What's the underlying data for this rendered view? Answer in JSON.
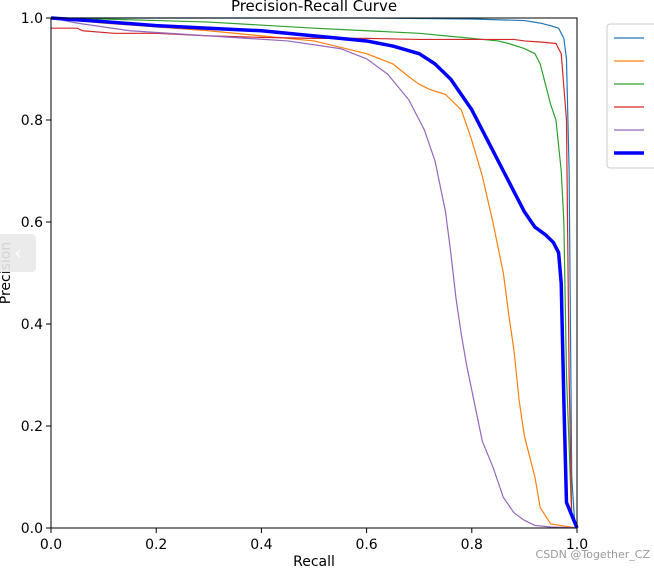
{
  "chart_data": {
    "type": "line",
    "title": "Precision-Recall Curve",
    "xlabel": "Recall",
    "ylabel": "Precision",
    "xlim": [
      0.0,
      1.0
    ],
    "ylim": [
      0.0,
      1.0
    ],
    "xticks": [
      "0.0",
      "0.2",
      "0.4",
      "0.6",
      "0.8",
      "1.0"
    ],
    "yticks": [
      "0.0",
      "0.2",
      "0.4",
      "0.6",
      "0.8",
      "1.0"
    ],
    "grid": false,
    "legend_position": "outside top-right",
    "series": [
      {
        "color": "#1f77b4",
        "linewidth": 1.2,
        "x": [
          0.0,
          0.05,
          0.2,
          0.4,
          0.6,
          0.8,
          0.9,
          0.93,
          0.95,
          0.965,
          0.975,
          0.98,
          0.985,
          0.99,
          0.995,
          1.0
        ],
        "y": [
          1.0,
          1.0,
          1.0,
          1.0,
          1.0,
          0.998,
          0.995,
          0.99,
          0.985,
          0.98,
          0.96,
          0.92,
          0.7,
          0.1,
          0.02,
          0.0
        ]
      },
      {
        "color": "#ff7f0e",
        "linewidth": 1.2,
        "x": [
          0.0,
          0.1,
          0.3,
          0.5,
          0.6,
          0.65,
          0.68,
          0.7,
          0.72,
          0.75,
          0.78,
          0.8,
          0.82,
          0.84,
          0.86,
          0.87,
          0.88,
          0.89,
          0.9,
          0.92,
          0.93,
          0.95,
          0.98,
          1.0
        ],
        "y": [
          1.0,
          0.99,
          0.975,
          0.955,
          0.93,
          0.91,
          0.885,
          0.87,
          0.86,
          0.85,
          0.82,
          0.76,
          0.69,
          0.6,
          0.5,
          0.42,
          0.35,
          0.25,
          0.18,
          0.1,
          0.04,
          0.008,
          0.003,
          0.0
        ]
      },
      {
        "color": "#2ca02c",
        "linewidth": 1.2,
        "x": [
          0.0,
          0.1,
          0.3,
          0.5,
          0.6,
          0.7,
          0.8,
          0.85,
          0.87,
          0.9,
          0.92,
          0.93,
          0.94,
          0.95,
          0.96,
          0.97,
          0.975,
          0.98,
          0.99,
          1.0
        ],
        "y": [
          1.0,
          0.998,
          0.992,
          0.98,
          0.975,
          0.97,
          0.96,
          0.955,
          0.95,
          0.94,
          0.93,
          0.91,
          0.87,
          0.83,
          0.8,
          0.7,
          0.6,
          0.3,
          0.02,
          0.0
        ]
      },
      {
        "color": "#d62728",
        "linewidth": 1.2,
        "x": [
          0.0,
          0.05,
          0.06,
          0.12,
          0.2,
          0.3,
          0.4,
          0.5,
          0.6,
          0.7,
          0.8,
          0.88,
          0.9,
          0.93,
          0.96,
          0.97,
          0.98,
          0.985,
          0.99,
          1.0
        ],
        "y": [
          0.98,
          0.98,
          0.975,
          0.97,
          0.97,
          0.965,
          0.962,
          0.96,
          0.96,
          0.958,
          0.958,
          0.958,
          0.955,
          0.953,
          0.95,
          0.93,
          0.8,
          0.3,
          0.02,
          0.0
        ]
      },
      {
        "color": "#9467bd",
        "linewidth": 1.2,
        "x": [
          0.0,
          0.05,
          0.15,
          0.3,
          0.45,
          0.55,
          0.6,
          0.64,
          0.68,
          0.71,
          0.73,
          0.75,
          0.76,
          0.77,
          0.78,
          0.79,
          0.8,
          0.81,
          0.82,
          0.84,
          0.86,
          0.88,
          0.9,
          0.92,
          0.95,
          1.0
        ],
        "y": [
          1.0,
          0.99,
          0.975,
          0.965,
          0.955,
          0.94,
          0.92,
          0.89,
          0.84,
          0.78,
          0.72,
          0.62,
          0.54,
          0.45,
          0.38,
          0.32,
          0.27,
          0.22,
          0.17,
          0.12,
          0.06,
          0.03,
          0.015,
          0.005,
          0.002,
          0.0
        ]
      },
      {
        "color": "#0000ff",
        "linewidth": 3.5,
        "x": [
          0.0,
          0.1,
          0.2,
          0.3,
          0.4,
          0.5,
          0.55,
          0.6,
          0.65,
          0.7,
          0.73,
          0.76,
          0.78,
          0.8,
          0.82,
          0.84,
          0.86,
          0.88,
          0.9,
          0.92,
          0.94,
          0.955,
          0.965,
          0.97,
          0.975,
          0.98,
          1.0
        ],
        "y": [
          1.0,
          0.993,
          0.985,
          0.98,
          0.975,
          0.965,
          0.96,
          0.955,
          0.945,
          0.93,
          0.91,
          0.88,
          0.85,
          0.82,
          0.78,
          0.74,
          0.7,
          0.66,
          0.62,
          0.59,
          0.575,
          0.56,
          0.54,
          0.48,
          0.25,
          0.05,
          0.0
        ]
      }
    ]
  },
  "watermark": "CSDN @Together_CZ",
  "side_tab": {
    "icon": "chevron-left-icon",
    "glyph": "‹"
  }
}
